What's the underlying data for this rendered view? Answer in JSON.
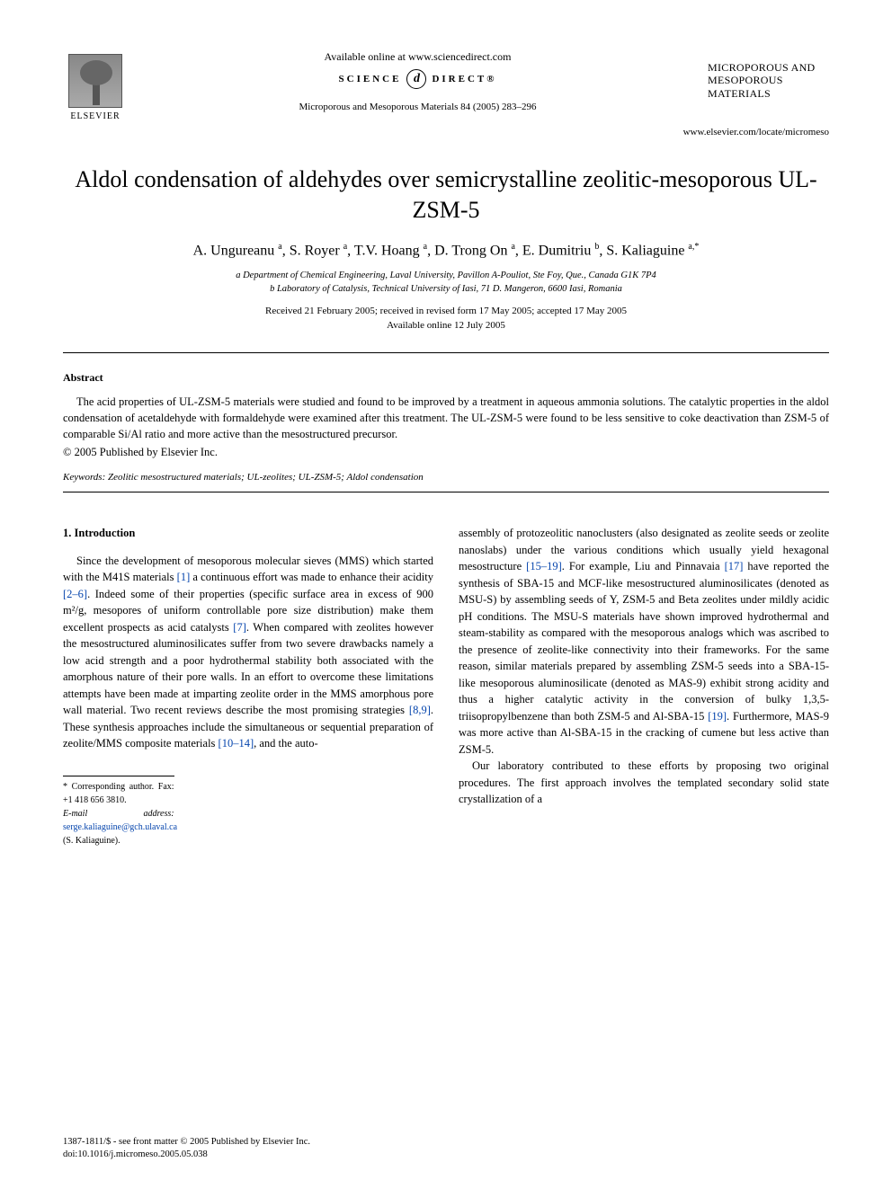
{
  "header": {
    "elsevier": "ELSEVIER",
    "available_online": "Available online at www.sciencedirect.com",
    "sd_left": "SCIENCE",
    "sd_glyph": "d",
    "sd_right": "DIRECT®",
    "citation": "Microporous and Mesoporous Materials 84 (2005) 283–296",
    "journal_logo_line1": "MICROPOROUS AND",
    "journal_logo_line2": "MESOPOROUS",
    "journal_logo_line3": "MATERIALS",
    "locate": "www.elsevier.com/locate/micromeso"
  },
  "article": {
    "title": "Aldol condensation of aldehydes over semicrystalline zeolitic-mesoporous UL-ZSM-5",
    "authors_html": "A. Ungureanu <sup>a</sup>, S. Royer <sup>a</sup>, T.V. Hoang <sup>a</sup>, D. Trong On <sup>a</sup>, E. Dumitriu <sup>b</sup>, S. Kaliaguine <sup>a,*</sup>",
    "affiliation_a": "a Department of Chemical Engineering, Laval University, Pavillon A-Pouliot, Ste Foy, Que., Canada G1K 7P4",
    "affiliation_b": "b Laboratory of Catalysis, Technical University of Iasi, 71 D. Mangeron, 6600 Iasi, Romania",
    "dates_line1": "Received 21 February 2005; received in revised form 17 May 2005; accepted 17 May 2005",
    "dates_line2": "Available online 12 July 2005"
  },
  "abstract": {
    "heading": "Abstract",
    "text": "The acid properties of UL-ZSM-5 materials were studied and found to be improved by a treatment in aqueous ammonia solutions. The catalytic properties in the aldol condensation of acetaldehyde with formaldehyde were examined after this treatment. The UL-ZSM-5 were found to be less sensitive to coke deactivation than ZSM-5 of comparable Si/Al ratio and more active than the mesostructured precursor.",
    "copyright": "© 2005 Published by Elsevier Inc.",
    "keywords_label": "Keywords:",
    "keywords": " Zeolitic mesostructured materials; UL-zeolites; UL-ZSM-5; Aldol condensation"
  },
  "body": {
    "section_heading": "1. Introduction",
    "col1_p1a": "Since the development of mesoporous molecular sieves (MMS) which started with the M41S materials ",
    "ref1": "[1]",
    "col1_p1b": " a continuous effort was made to enhance their acidity ",
    "ref2": "[2–6]",
    "col1_p1c": ". Indeed some of their properties (specific surface area in excess of 900 m²/g, mesopores of uniform controllable pore size distribution) make them excellent prospects as acid catalysts ",
    "ref7": "[7]",
    "col1_p1d": ". When compared with zeolites however the mesostructured aluminosilicates suffer from two severe drawbacks namely a low acid strength and a poor hydrothermal stability both associated with the amorphous nature of their pore walls. In an effort to overcome these limitations attempts have been made at imparting zeolite order in the MMS amorphous pore wall material. Two recent reviews describe the most promising strategies ",
    "ref89": "[8,9]",
    "col1_p1e": ". These synthesis approaches include the simultaneous or sequential preparation of zeolite/MMS composite materials ",
    "ref1014": "[10–14]",
    "col1_p1f": ", and the auto-",
    "col2_p1a": "assembly of protozeolitic nanoclusters (also designated as zeolite seeds or zeolite nanoslabs) under the various conditions which usually yield hexagonal mesostructure ",
    "ref1519": "[15–19]",
    "col2_p1b": ". For example, Liu and Pinnavaia ",
    "ref17": "[17]",
    "col2_p1c": " have reported the synthesis of SBA-15 and MCF-like mesostructured aluminosilicates (denoted as MSU-S) by assembling seeds of Y, ZSM-5 and Beta zeolites under mildly acidic pH conditions. The MSU-S materials have shown improved hydrothermal and steam-stability as compared with the mesoporous analogs which was ascribed to the presence of zeolite-like connectivity into their frameworks. For the same reason, similar materials prepared by assembling ZSM-5 seeds into a SBA-15-like mesoporous aluminosilicate (denoted as MAS-9) exhibit strong acidity and thus a higher catalytic activity in the conversion of bulky 1,3,5-triisopropylbenzene than both ZSM-5 and Al-SBA-15 ",
    "ref19": "[19]",
    "col2_p1d": ". Furthermore, MAS-9 was more active than Al-SBA-15 in the cracking of cumene but less active than ZSM-5.",
    "col2_p2": "Our laboratory contributed to these efforts by proposing two original procedures. The first approach involves the templated secondary solid state crystallization of a"
  },
  "footnotes": {
    "corresponding": "* Corresponding author. Fax: +1 418 656 3810.",
    "email_label": "E-mail address:",
    "email": "serge.kaliaguine@gch.ulaval.ca",
    "email_suffix": " (S. Kaliaguine)."
  },
  "footer": {
    "line1": "1387-1811/$ - see front matter © 2005 Published by Elsevier Inc.",
    "line2": "doi:10.1016/j.micromeso.2005.05.038"
  },
  "colors": {
    "link": "#0645ad",
    "text": "#000000",
    "bg": "#ffffff"
  }
}
